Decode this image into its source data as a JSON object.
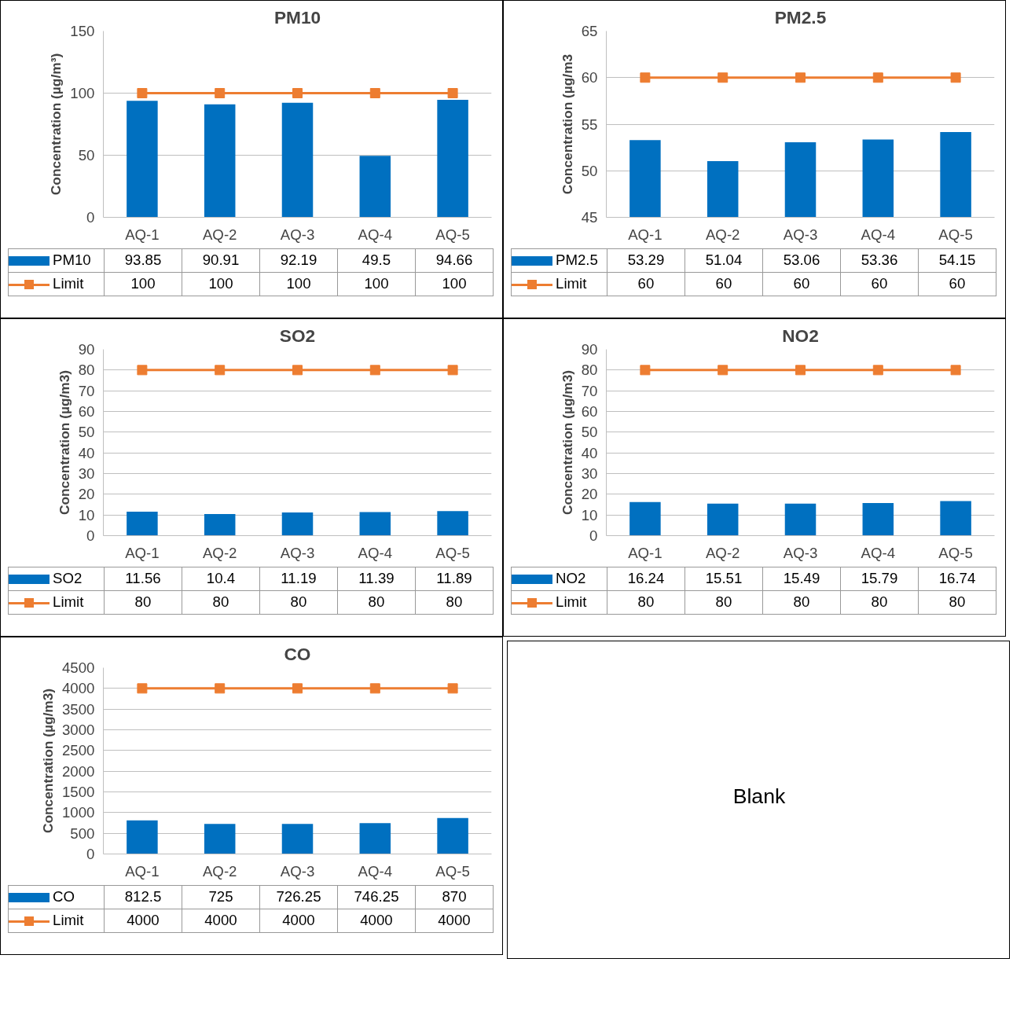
{
  "chart_data": [
    {
      "type": "bar",
      "title": "PM10",
      "ylabel": "Concentration (µg/m³)",
      "categories": [
        "AQ-1",
        "AQ-2",
        "AQ-3",
        "AQ-4",
        "AQ-5"
      ],
      "ylim": [
        0,
        150
      ],
      "yticks": [
        0,
        50,
        100,
        150
      ],
      "grid": "y",
      "legend": "bottom",
      "data_labels": true,
      "marker": "square",
      "series": [
        {
          "name": "PM10",
          "type": "bar",
          "color": "#0070c0",
          "values": [
            93.85,
            90.91,
            92.19,
            49.5,
            94.66
          ]
        },
        {
          "name": "Limit",
          "type": "line",
          "color": "#ed7d31",
          "values": [
            100,
            100,
            100,
            100,
            100
          ]
        }
      ]
    },
    {
      "type": "bar",
      "title": "PM2.5",
      "ylabel": "Concentration (µg/m3",
      "categories": [
        "AQ-1",
        "AQ-2",
        "AQ-3",
        "AQ-4",
        "AQ-5"
      ],
      "ylim": [
        45,
        65
      ],
      "yticks": [
        45,
        50,
        55,
        60,
        65
      ],
      "grid": "y",
      "legend": "bottom",
      "data_labels": true,
      "marker": "square",
      "series": [
        {
          "name": "PM2.5",
          "type": "bar",
          "color": "#0070c0",
          "values": [
            53.29,
            51.04,
            53.06,
            53.36,
            54.15
          ]
        },
        {
          "name": "Limit",
          "type": "line",
          "color": "#ed7d31",
          "values": [
            60,
            60,
            60,
            60,
            60
          ]
        }
      ]
    },
    {
      "type": "bar",
      "title": "SO2",
      "ylabel": "Concentration (µg/m3)",
      "categories": [
        "AQ-1",
        "AQ-2",
        "AQ-3",
        "AQ-4",
        "AQ-5"
      ],
      "ylim": [
        0,
        90
      ],
      "yticks": [
        0,
        10,
        20,
        30,
        40,
        50,
        60,
        70,
        80,
        90
      ],
      "grid": "y",
      "legend": "bottom",
      "data_labels": true,
      "marker": "square",
      "series": [
        {
          "name": "SO2",
          "type": "bar",
          "color": "#0070c0",
          "values": [
            11.56,
            10.4,
            11.19,
            11.39,
            11.89
          ]
        },
        {
          "name": "Limit",
          "type": "line",
          "color": "#ed7d31",
          "values": [
            80,
            80,
            80,
            80,
            80
          ]
        }
      ]
    },
    {
      "type": "bar",
      "title": "NO2",
      "ylabel": "Concentration (µg/m3)",
      "categories": [
        "AQ-1",
        "AQ-2",
        "AQ-3",
        "AQ-4",
        "AQ-5"
      ],
      "ylim": [
        0,
        90
      ],
      "yticks": [
        0,
        10,
        20,
        30,
        40,
        50,
        60,
        70,
        80,
        90
      ],
      "grid": "y",
      "legend": "bottom",
      "data_labels": true,
      "marker": "square",
      "series": [
        {
          "name": "NO2",
          "type": "bar",
          "color": "#0070c0",
          "values": [
            16.24,
            15.51,
            15.49,
            15.79,
            16.74
          ]
        },
        {
          "name": "Limit",
          "type": "line",
          "color": "#ed7d31",
          "values": [
            80,
            80,
            80,
            80,
            80
          ]
        }
      ]
    },
    {
      "type": "bar",
      "title": "CO",
      "ylabel": "Concentration (µg/m3)",
      "categories": [
        "AQ-1",
        "AQ-2",
        "AQ-3",
        "AQ-4",
        "AQ-5"
      ],
      "ylim": [
        0,
        4500
      ],
      "yticks": [
        0,
        500,
        1000,
        1500,
        2000,
        2500,
        3000,
        3500,
        4000,
        4500
      ],
      "grid": "y",
      "legend": "bottom",
      "data_labels": true,
      "marker": "square",
      "series": [
        {
          "name": "CO",
          "type": "bar",
          "color": "#0070c0",
          "values": [
            812.5,
            725,
            726.25,
            746.25,
            870
          ]
        },
        {
          "name": "Limit",
          "type": "line",
          "color": "#ed7d31",
          "values": [
            4000,
            4000,
            4000,
            4000,
            4000
          ]
        }
      ]
    },
    {
      "type": "other",
      "annotations": [
        "Blank"
      ]
    }
  ]
}
